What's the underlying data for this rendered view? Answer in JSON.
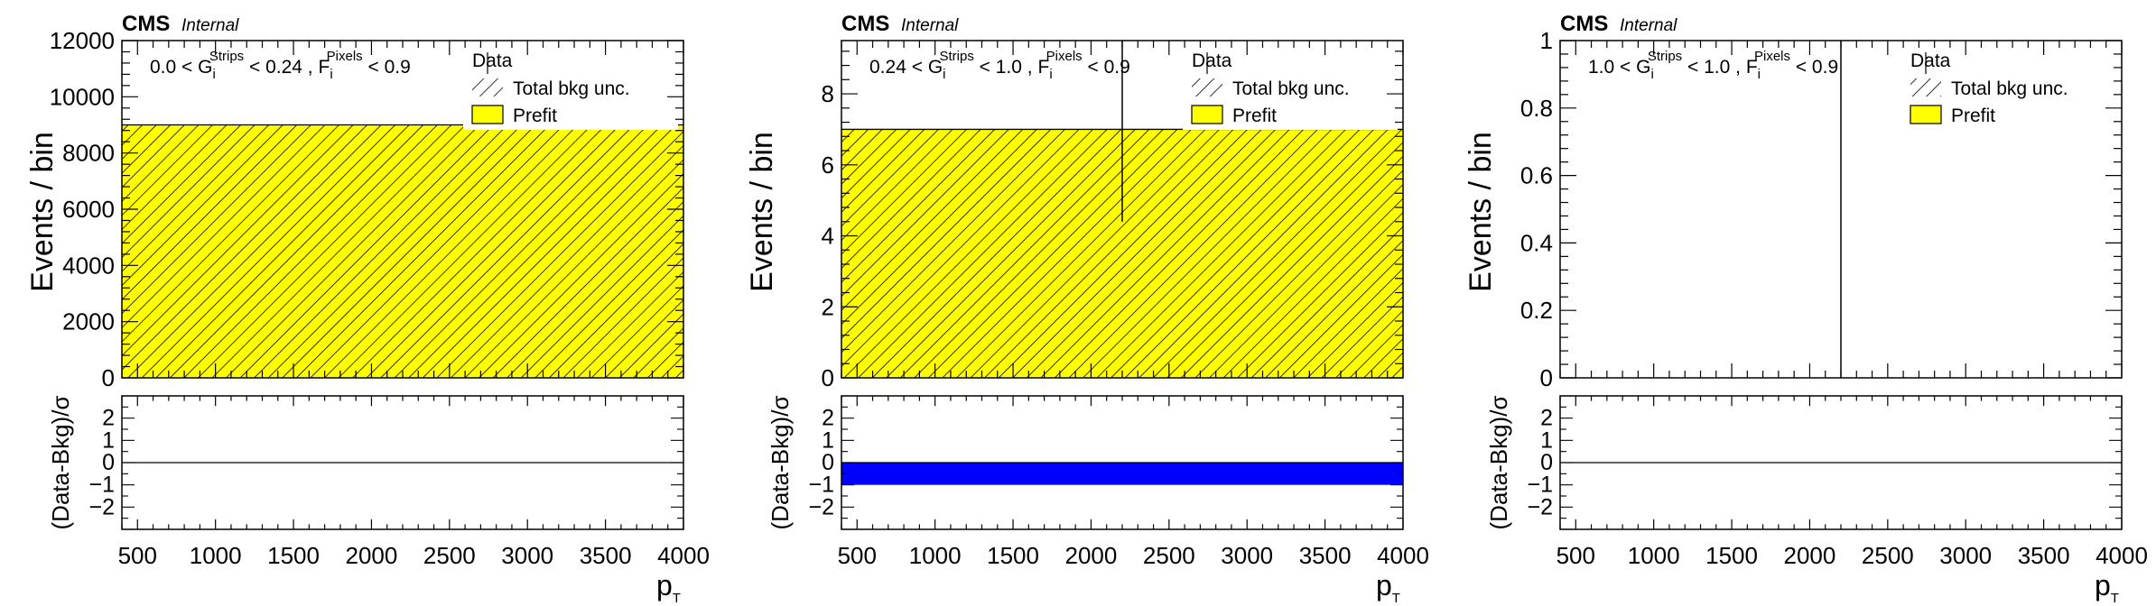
{
  "chart_data": [
    {
      "type": "bar",
      "experiment": "CMS",
      "status": "Internal",
      "selection": {
        "low": "0.0",
        "high": "0.24",
        "g_label": "G",
        "g_sub": "i",
        "g_sup": "Strips",
        "f_label": "F",
        "f_sub": "i",
        "f_sup": "Pixels",
        "f_cut": "< 0.9",
        "lt": "<",
        "comma": ","
      },
      "xlabel": "p",
      "xlabel_sub": "T",
      "ylabel": "Events / bin",
      "ratio_ylabel": "(Data-Bkg)/σ",
      "xlim": [
        400,
        4000
      ],
      "x_ticks": [
        500,
        1000,
        1500,
        2000,
        2500,
        3000,
        3500,
        4000
      ],
      "ylim": [
        0,
        12000
      ],
      "y_ticks": [
        0,
        2000,
        4000,
        6000,
        8000,
        10000,
        12000
      ],
      "ratio_ylim": [
        -3,
        3
      ],
      "ratio_ticks": [
        -2,
        -1,
        0,
        1,
        2
      ],
      "prefit": {
        "x_low": 400,
        "x_high": 4000,
        "value": 9000
      },
      "data_points": [],
      "ratio_band": null,
      "legend": {
        "data": "Data",
        "unc": "Total bkg unc.",
        "prefit": "Prefit"
      }
    },
    {
      "type": "bar",
      "experiment": "CMS",
      "status": "Internal",
      "selection": {
        "low": "0.24",
        "high": "1.0",
        "g_label": "G",
        "g_sub": "i",
        "g_sup": "Strips",
        "f_label": "F",
        "f_sub": "i",
        "f_sup": "Pixels",
        "f_cut": "< 0.9",
        "lt": "<",
        "comma": ","
      },
      "xlabel": "p",
      "xlabel_sub": "T",
      "ylabel": "Events / bin",
      "ratio_ylabel": "(Data-Bkg)/σ",
      "xlim": [
        400,
        4000
      ],
      "x_ticks": [
        500,
        1000,
        1500,
        2000,
        2500,
        3000,
        3500,
        4000
      ],
      "ylim": [
        0,
        9.5
      ],
      "y_ticks": [
        0,
        2,
        4,
        6,
        8
      ],
      "ratio_ylim": [
        -3,
        3
      ],
      "ratio_ticks": [
        -2,
        -1,
        0,
        1,
        2
      ],
      "prefit": {
        "x_low": 400,
        "x_high": 4000,
        "value": 7
      },
      "data_points": [
        {
          "x": 2200,
          "y": 7,
          "err_low": 2.6,
          "err_high": 2.6
        }
      ],
      "ratio_band": {
        "low": -1.0,
        "high": 0.0,
        "color": "#0000ff"
      },
      "legend": {
        "data": "Data",
        "unc": "Total bkg unc.",
        "prefit": "Prefit"
      }
    },
    {
      "type": "bar",
      "experiment": "CMS",
      "status": "Internal",
      "selection": {
        "low": "1.0",
        "high": "1.0",
        "g_label": "G",
        "g_sub": "i",
        "g_sup": "Strips",
        "f_label": "F",
        "f_sub": "i",
        "f_sup": "Pixels",
        "f_cut": "< 0.9",
        "lt": "<",
        "comma": ","
      },
      "xlabel": "p",
      "xlabel_sub": "T",
      "ylabel": "Events / bin",
      "ratio_ylabel": "(Data-Bkg)/σ",
      "xlim": [
        400,
        4000
      ],
      "x_ticks": [
        500,
        1000,
        1500,
        2000,
        2500,
        3000,
        3500,
        4000
      ],
      "ylim": [
        0,
        1
      ],
      "y_ticks": [
        0,
        0.2,
        0.4,
        0.6,
        0.8,
        1
      ],
      "ratio_ylim": [
        -3,
        3
      ],
      "ratio_ticks": [
        -2,
        -1,
        0,
        1,
        2
      ],
      "prefit": null,
      "data_points": [
        {
          "x": 2200,
          "y": 0,
          "err_low": 0,
          "err_high": 1.0
        }
      ],
      "ratio_band": null,
      "legend": {
        "data": "Data",
        "unc": "Total bkg unc.",
        "prefit": "Prefit"
      }
    }
  ],
  "colors": {
    "prefit": "#ffff00",
    "hatch": "#000000",
    "band": "#0000ff",
    "frame": "#000000"
  }
}
